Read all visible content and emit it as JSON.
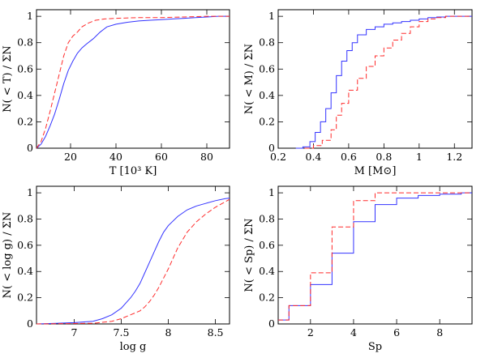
{
  "chart_data": [
    {
      "type": "line",
      "xlabel": "T [10³ K]",
      "ylabel": "N( < T) / ΣN",
      "xlim": [
        5,
        90
      ],
      "ylim": [
        0,
        1.05
      ],
      "xticks": [
        20,
        40,
        60,
        80
      ],
      "yticks": [
        0,
        0.2,
        0.4,
        0.6,
        0.8,
        1
      ],
      "ytick_labels": [
        "0",
        "0.2",
        "0.4",
        "0.6",
        "0.8",
        "1"
      ],
      "step": false,
      "series": [
        {
          "style": "solid",
          "color": "#3333ff",
          "x": [
            5,
            7,
            9,
            11,
            13,
            15,
            17,
            19,
            21,
            23,
            25,
            27,
            30,
            33,
            36,
            40,
            45,
            50,
            55,
            60,
            65,
            70,
            75,
            80,
            85,
            90
          ],
          "y": [
            0,
            0.03,
            0.09,
            0.17,
            0.26,
            0.37,
            0.49,
            0.59,
            0.66,
            0.72,
            0.76,
            0.79,
            0.83,
            0.88,
            0.92,
            0.94,
            0.955,
            0.965,
            0.97,
            0.975,
            0.98,
            0.985,
            0.99,
            0.995,
            1,
            1
          ]
        },
        {
          "style": "dashed",
          "color": "#ff2a2a",
          "x": [
            5,
            7,
            9,
            11,
            13,
            15,
            17,
            19,
            21,
            23,
            25,
            28,
            31,
            35,
            40,
            50,
            60,
            70,
            80,
            90
          ],
          "y": [
            0,
            0.05,
            0.15,
            0.28,
            0.42,
            0.56,
            0.7,
            0.8,
            0.85,
            0.88,
            0.92,
            0.95,
            0.97,
            0.98,
            0.985,
            0.99,
            0.99,
            0.995,
            1,
            1
          ]
        }
      ]
    },
    {
      "type": "line",
      "xlabel": "M [M⊙]",
      "ylabel": "N( < M) / ΣN",
      "xlim": [
        0.2,
        1.3
      ],
      "ylim": [
        0,
        1.05
      ],
      "xticks": [
        0.2,
        0.4,
        0.6,
        0.8,
        1,
        1.2
      ],
      "xtick_labels": [
        "0.2",
        "0.4",
        "0.6",
        "0.8",
        "1",
        "1.2"
      ],
      "yticks": [
        0,
        0.2,
        0.4,
        0.6,
        0.8,
        1
      ],
      "ytick_labels": [
        "0",
        "0.2",
        "0.4",
        "0.6",
        "0.8",
        "1"
      ],
      "step": true,
      "series": [
        {
          "style": "solid",
          "color": "#3333ff",
          "x": [
            0.3,
            0.34,
            0.38,
            0.41,
            0.44,
            0.47,
            0.5,
            0.53,
            0.56,
            0.59,
            0.62,
            0.65,
            0.7,
            0.75,
            0.8,
            0.85,
            0.9,
            0.95,
            1,
            1.05,
            1.1,
            1.15,
            1.2,
            1.3
          ],
          "y": [
            0,
            0.01,
            0.05,
            0.12,
            0.2,
            0.3,
            0.42,
            0.55,
            0.66,
            0.74,
            0.8,
            0.86,
            0.9,
            0.92,
            0.94,
            0.95,
            0.96,
            0.97,
            0.98,
            0.99,
            0.995,
            1,
            1,
            1
          ]
        },
        {
          "style": "dashed",
          "color": "#ff2a2a",
          "x": [
            0.35,
            0.4,
            0.45,
            0.5,
            0.53,
            0.56,
            0.6,
            0.65,
            0.7,
            0.75,
            0.8,
            0.85,
            0.9,
            0.95,
            1,
            1.05,
            1.1,
            1.15,
            1.3
          ],
          "y": [
            0,
            0.02,
            0.06,
            0.14,
            0.25,
            0.34,
            0.44,
            0.53,
            0.62,
            0.7,
            0.76,
            0.82,
            0.87,
            0.92,
            0.96,
            0.98,
            0.99,
            1,
            1
          ]
        }
      ]
    },
    {
      "type": "line",
      "xlabel": "log g",
      "ylabel": "N( < log g) / ΣN",
      "xlim": [
        6.6,
        8.65
      ],
      "ylim": [
        0,
        1.05
      ],
      "xticks": [
        7,
        7.5,
        8,
        8.5
      ],
      "xtick_labels": [
        "7",
        "7.5",
        "8",
        "8.5"
      ],
      "yticks": [
        0,
        0.2,
        0.4,
        0.6,
        0.8,
        1
      ],
      "ytick_labels": [
        "0",
        "0.2",
        "0.4",
        "0.6",
        "0.8",
        "1"
      ],
      "step": false,
      "series": [
        {
          "style": "solid",
          "color": "#3333ff",
          "x": [
            6.6,
            6.8,
            7.0,
            7.2,
            7.3,
            7.4,
            7.5,
            7.55,
            7.6,
            7.65,
            7.7,
            7.75,
            7.8,
            7.85,
            7.9,
            7.95,
            8.0,
            8.1,
            8.2,
            8.3,
            8.4,
            8.5,
            8.6,
            8.65
          ],
          "y": [
            0,
            0.005,
            0.01,
            0.02,
            0.04,
            0.07,
            0.12,
            0.16,
            0.2,
            0.25,
            0.31,
            0.39,
            0.47,
            0.55,
            0.63,
            0.7,
            0.75,
            0.82,
            0.87,
            0.9,
            0.92,
            0.94,
            0.955,
            0.96
          ]
        },
        {
          "style": "dashed",
          "color": "#ff2a2a",
          "x": [
            6.6,
            7.2,
            7.4,
            7.5,
            7.6,
            7.7,
            7.75,
            7.8,
            7.85,
            7.9,
            7.95,
            8.0,
            8.05,
            8.1,
            8.2,
            8.3,
            8.4,
            8.5,
            8.6,
            8.65
          ],
          "y": [
            0,
            0.005,
            0.02,
            0.04,
            0.07,
            0.1,
            0.13,
            0.17,
            0.22,
            0.28,
            0.35,
            0.42,
            0.5,
            0.58,
            0.7,
            0.78,
            0.84,
            0.89,
            0.93,
            0.95
          ]
        }
      ]
    },
    {
      "type": "line",
      "xlabel": "Sp",
      "ylabel": "N( < Sp) / ΣN",
      "xlim": [
        0.5,
        9.5
      ],
      "ylim": [
        0,
        1.05
      ],
      "xticks": [
        2,
        4,
        6,
        8
      ],
      "xtick_labels": [
        "2",
        "4",
        "6",
        "8"
      ],
      "yticks": [
        0,
        0.2,
        0.4,
        0.6,
        0.8,
        1
      ],
      "ytick_labels": [
        "0",
        "0.2",
        "0.4",
        "0.6",
        "0.8",
        "1"
      ],
      "step": true,
      "series": [
        {
          "style": "solid",
          "color": "#3333ff",
          "x": [
            0.5,
            1,
            2,
            3,
            4,
            5,
            6,
            7,
            8,
            9,
            9.5
          ],
          "y": [
            0.03,
            0.14,
            0.3,
            0.54,
            0.78,
            0.91,
            0.96,
            0.98,
            0.99,
            1,
            1
          ]
        },
        {
          "style": "dashed",
          "color": "#ff2a2a",
          "x": [
            0.5,
            1,
            2,
            3,
            4,
            5,
            6,
            7,
            8,
            9,
            9.5
          ],
          "y": [
            0.03,
            0.14,
            0.39,
            0.74,
            0.94,
            1,
            1,
            1,
            1,
            1,
            1
          ]
        }
      ]
    }
  ]
}
